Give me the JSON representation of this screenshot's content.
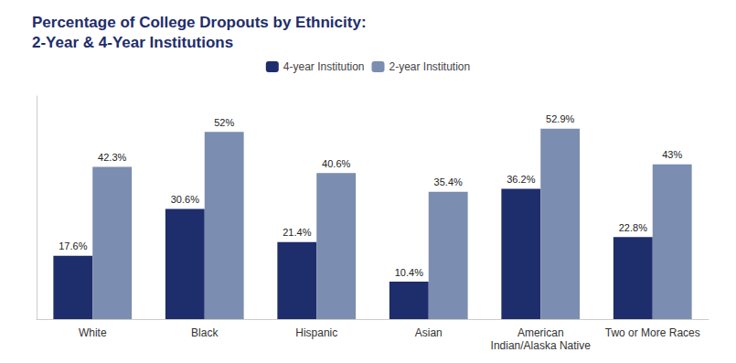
{
  "chart_data": {
    "type": "bar",
    "title": "Percentage of College Dropouts by Ethnicity:\n2-Year & 4-Year Institutions",
    "title_color": "#1e2d6b",
    "categories": [
      "White",
      "Black",
      "Hispanic",
      "Asian",
      "American\nIndian/Alaska Native",
      "Two or More Races"
    ],
    "series": [
      {
        "name": "4-year Institution",
        "color": "#1e2d6b",
        "values": [
          17.6,
          30.6,
          21.4,
          10.4,
          36.2,
          22.8
        ],
        "value_labels": [
          "17.6%",
          "30.6%",
          "21.4%",
          "10.4%",
          "36.2%",
          "22.8%"
        ]
      },
      {
        "name": "2-year Institution",
        "color": "#7b8db0",
        "values": [
          42.3,
          52.0,
          40.6,
          35.4,
          52.9,
          43.0
        ],
        "value_labels": [
          "42.3%",
          "52%",
          "40.6%",
          "35.4%",
          "52.9%",
          "43%"
        ]
      }
    ],
    "ylim": [
      0,
      62
    ],
    "yticks": [],
    "tick_labels": "x",
    "data_labels": true,
    "grid": false,
    "legend": "top"
  }
}
